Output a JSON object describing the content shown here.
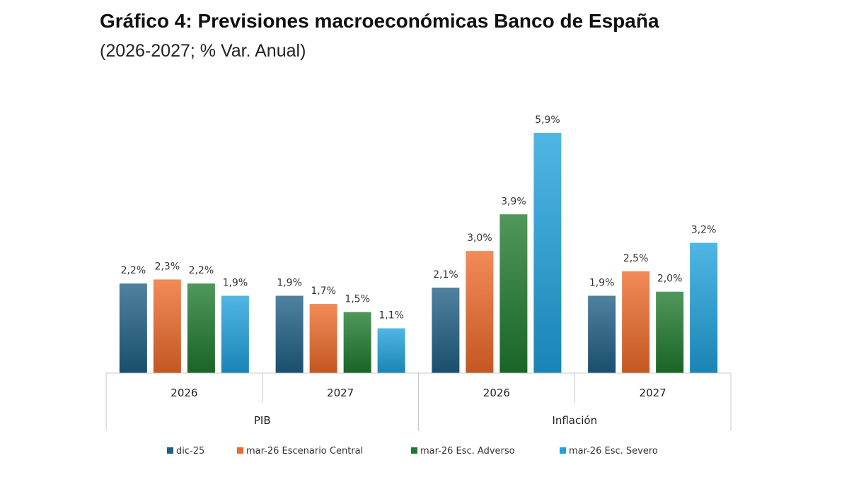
{
  "chart_data": {
    "type": "bar",
    "title": "Gráfico 4: Previsiones macroeconómicas Banco de España",
    "subtitle": "(2026-2027; % Var. Anual)",
    "groups": [
      {
        "label": "PIB",
        "categories": [
          "2026",
          "2027"
        ]
      },
      {
        "label": "Inflación",
        "categories": [
          "2026",
          "2027"
        ]
      }
    ],
    "categories": [
      "PIB 2026",
      "PIB 2027",
      "Inflación 2026",
      "Inflación 2027"
    ],
    "series": [
      {
        "name": "dic-25",
        "color": "#1f5f85",
        "values": [
          2.2,
          1.9,
          2.1,
          1.9
        ],
        "labels": [
          "2,2%",
          "1,9%",
          "2,1%",
          "1,9%"
        ]
      },
      {
        "name": "mar-26 Escenario Central",
        "color": "#ee6a2a",
        "values": [
          2.3,
          1.7,
          3.0,
          2.5
        ],
        "labels": [
          "2,3%",
          "1,7%",
          "3,0%",
          "2,5%"
        ]
      },
      {
        "name": "mar-26 Esc. Adverso",
        "color": "#1e7a2e",
        "values": [
          2.2,
          1.5,
          3.9,
          2.0
        ],
        "labels": [
          "2,2%",
          "1,5%",
          "3,9%",
          "2,0%"
        ]
      },
      {
        "name": "mar-26 Esc. Severo",
        "color": "#1fa2dd",
        "values": [
          1.9,
          1.1,
          5.9,
          3.2
        ],
        "labels": [
          "1,9%",
          "1,1%",
          "5,9%",
          "3,2%"
        ]
      }
    ],
    "ylim": [
      0,
      5.9
    ],
    "grid": false,
    "legend_position": "bottom"
  }
}
